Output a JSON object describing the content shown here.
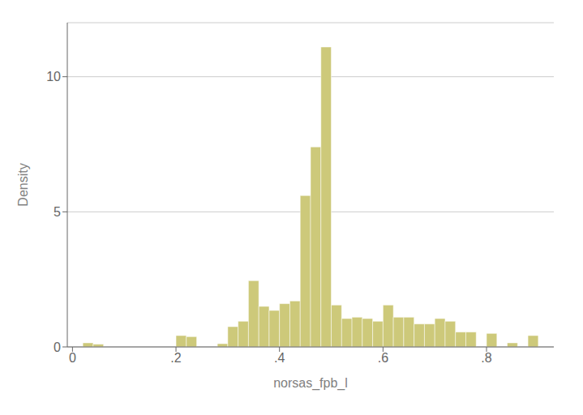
{
  "chart_data": {
    "type": "bar",
    "xlabel": "norsas_fpb_l",
    "ylabel": "Density",
    "x": [
      0.02,
      0.04,
      0.2,
      0.22,
      0.28,
      0.3,
      0.32,
      0.34,
      0.36,
      0.38,
      0.4,
      0.42,
      0.44,
      0.46,
      0.48,
      0.5,
      0.52,
      0.54,
      0.56,
      0.58,
      0.6,
      0.62,
      0.64,
      0.66,
      0.68,
      0.7,
      0.72,
      0.74,
      0.76,
      0.8,
      0.84,
      0.88
    ],
    "bin_width": 0.02,
    "values": [
      0.15,
      0.1,
      0.42,
      0.38,
      0.12,
      0.75,
      0.95,
      2.45,
      1.5,
      1.35,
      1.6,
      1.7,
      5.6,
      7.4,
      11.1,
      1.55,
      1.05,
      1.1,
      1.05,
      0.95,
      1.55,
      1.1,
      1.1,
      0.85,
      0.85,
      1.05,
      0.95,
      0.55,
      0.55,
      0.5,
      0.15,
      0.42
    ],
    "color": "#cdc97a",
    "xlim": [
      -0.01,
      0.93
    ],
    "ylim": [
      0,
      12
    ],
    "xticks": [
      0,
      {
        "value": 0.2,
        "label": ".2"
      },
      {
        "value": 0.4,
        "label": ".4"
      },
      {
        "value": 0.6,
        "label": ".6"
      },
      {
        "value": 0.8,
        "label": ".8"
      }
    ],
    "yticks": [
      0,
      5,
      10
    ],
    "grid": true
  }
}
